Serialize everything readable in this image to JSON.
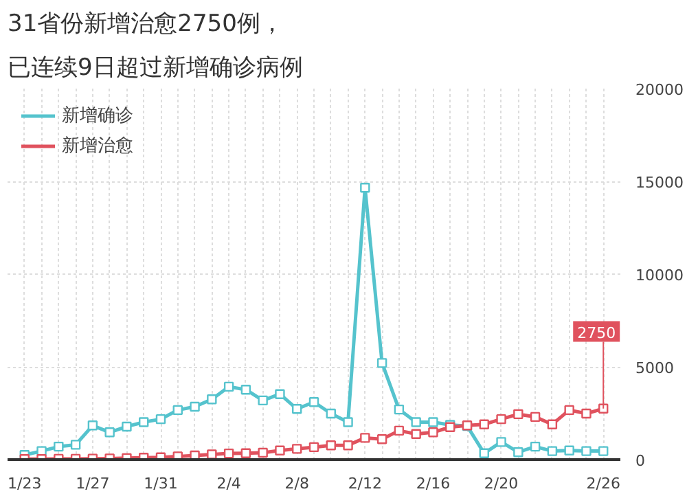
{
  "chart_data": {
    "type": "line",
    "title": "31省份新增治愈2750例，",
    "subtitle": "已连续9日超过新增确诊病例",
    "categories": [
      "1/23",
      null,
      null,
      null,
      "1/27",
      null,
      null,
      null,
      "1/31",
      null,
      null,
      null,
      "2/4",
      null,
      null,
      null,
      "2/8",
      null,
      null,
      null,
      "2/12",
      null,
      null,
      null,
      "2/16",
      null,
      null,
      null,
      "2/20",
      null,
      null,
      null,
      null,
      null,
      "2/26"
    ],
    "series": [
      {
        "name": "新增确诊",
        "color": "#55c3cd",
        "values": [
          250,
          460,
          700,
          800,
          1840,
          1470,
          1780,
          2020,
          2180,
          2670,
          2850,
          3250,
          3930,
          3770,
          3190,
          3530,
          2730,
          3100,
          2480,
          2020,
          14660,
          5210,
          2700,
          2020,
          2020,
          1870,
          1810,
          340,
          950,
          400,
          700,
          460,
          490,
          460,
          460
        ]
      },
      {
        "name": "新增治愈",
        "color": "#e0525e",
        "values": [
          30,
          30,
          40,
          40,
          50,
          60,
          80,
          100,
          120,
          170,
          220,
          280,
          330,
          340,
          370,
          490,
          580,
          670,
          770,
          770,
          1170,
          1100,
          1560,
          1380,
          1470,
          1750,
          1840,
          1900,
          2180,
          2450,
          2300,
          1900,
          2670,
          2480,
          2750
        ]
      }
    ],
    "ylim": [
      0,
      20000
    ],
    "yticks": [
      0,
      5000,
      10000,
      15000,
      20000
    ],
    "grid": true,
    "legend": "top left",
    "marker": "square",
    "line_style": "solid",
    "annotations": [
      {
        "text": "2750",
        "x": "2/26",
        "y": 2750
      }
    ]
  }
}
